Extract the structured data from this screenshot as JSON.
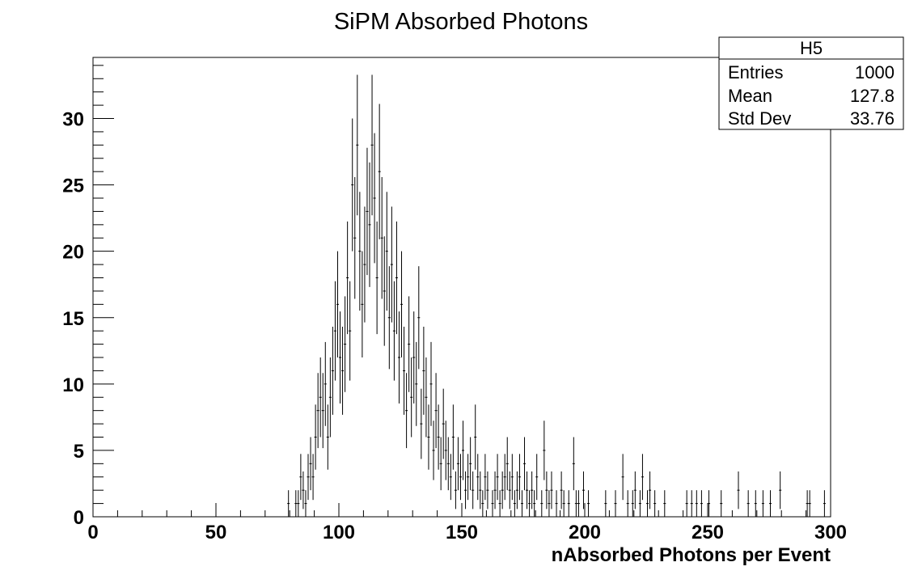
{
  "chart_data": {
    "type": "histogram",
    "title": "SiPM Absorbed Photons",
    "xlabel": "nAbsorbed Photons per Event",
    "ylabel": "",
    "xlim": [
      0,
      300
    ],
    "ylim": [
      0,
      34.6
    ],
    "bin_width": 1,
    "x_ticks": [
      "0",
      "50",
      "100",
      "150",
      "200",
      "250",
      "300"
    ],
    "y_ticks": [
      "0",
      "5",
      "10",
      "15",
      "20",
      "25",
      "30"
    ],
    "grid": false,
    "legend": "none",
    "stats_box": {
      "name": "H5",
      "rows": [
        {
          "label": "Entries",
          "value": "1000"
        },
        {
          "label": "Mean",
          "value": "127.8"
        },
        {
          "label": "Std Dev",
          "value": "33.76"
        }
      ]
    },
    "bins": [
      {
        "x": 79,
        "y": 1
      },
      {
        "x": 82,
        "y": 1
      },
      {
        "x": 83,
        "y": 1
      },
      {
        "x": 84,
        "y": 3
      },
      {
        "x": 85,
        "y": 2
      },
      {
        "x": 86,
        "y": 1
      },
      {
        "x": 87,
        "y": 3
      },
      {
        "x": 88,
        "y": 4
      },
      {
        "x": 89,
        "y": 3
      },
      {
        "x": 90,
        "y": 6
      },
      {
        "x": 91,
        "y": 8
      },
      {
        "x": 92,
        "y": 9
      },
      {
        "x": 93,
        "y": 8
      },
      {
        "x": 94,
        "y": 10
      },
      {
        "x": 95,
        "y": 6
      },
      {
        "x": 96,
        "y": 9
      },
      {
        "x": 97,
        "y": 11
      },
      {
        "x": 98,
        "y": 14
      },
      {
        "x": 99,
        "y": 16
      },
      {
        "x": 100,
        "y": 12
      },
      {
        "x": 101,
        "y": 11
      },
      {
        "x": 102,
        "y": 13
      },
      {
        "x": 103,
        "y": 18
      },
      {
        "x": 104,
        "y": 14
      },
      {
        "x": 105,
        "y": 25
      },
      {
        "x": 106,
        "y": 21
      },
      {
        "x": 107,
        "y": 28
      },
      {
        "x": 108,
        "y": 20
      },
      {
        "x": 109,
        "y": 16
      },
      {
        "x": 110,
        "y": 19
      },
      {
        "x": 111,
        "y": 23
      },
      {
        "x": 112,
        "y": 22
      },
      {
        "x": 113,
        "y": 28
      },
      {
        "x": 114,
        "y": 24
      },
      {
        "x": 115,
        "y": 18
      },
      {
        "x": 116,
        "y": 26
      },
      {
        "x": 117,
        "y": 21
      },
      {
        "x": 118,
        "y": 17
      },
      {
        "x": 119,
        "y": 20
      },
      {
        "x": 120,
        "y": 15
      },
      {
        "x": 121,
        "y": 19
      },
      {
        "x": 122,
        "y": 14
      },
      {
        "x": 123,
        "y": 18
      },
      {
        "x": 124,
        "y": 12
      },
      {
        "x": 125,
        "y": 16
      },
      {
        "x": 126,
        "y": 11
      },
      {
        "x": 127,
        "y": 8
      },
      {
        "x": 128,
        "y": 13
      },
      {
        "x": 129,
        "y": 9
      },
      {
        "x": 130,
        "y": 12
      },
      {
        "x": 131,
        "y": 10
      },
      {
        "x": 132,
        "y": 15
      },
      {
        "x": 133,
        "y": 7
      },
      {
        "x": 134,
        "y": 11
      },
      {
        "x": 135,
        "y": 9
      },
      {
        "x": 136,
        "y": 6
      },
      {
        "x": 137,
        "y": 10
      },
      {
        "x": 138,
        "y": 5
      },
      {
        "x": 139,
        "y": 8
      },
      {
        "x": 140,
        "y": 6
      },
      {
        "x": 141,
        "y": 4
      },
      {
        "x": 142,
        "y": 7
      },
      {
        "x": 143,
        "y": 5
      },
      {
        "x": 144,
        "y": 4
      },
      {
        "x": 145,
        "y": 3
      },
      {
        "x": 146,
        "y": 6
      },
      {
        "x": 147,
        "y": 2
      },
      {
        "x": 148,
        "y": 4
      },
      {
        "x": 149,
        "y": 3
      },
      {
        "x": 150,
        "y": 5
      },
      {
        "x": 151,
        "y": 2
      },
      {
        "x": 152,
        "y": 3
      },
      {
        "x": 153,
        "y": 4
      },
      {
        "x": 154,
        "y": 2
      },
      {
        "x": 155,
        "y": 6
      },
      {
        "x": 156,
        "y": 3
      },
      {
        "x": 157,
        "y": 2
      },
      {
        "x": 158,
        "y": 1
      },
      {
        "x": 159,
        "y": 3
      },
      {
        "x": 160,
        "y": 2
      },
      {
        "x": 162,
        "y": 1
      },
      {
        "x": 163,
        "y": 2
      },
      {
        "x": 164,
        "y": 3
      },
      {
        "x": 165,
        "y": 1
      },
      {
        "x": 166,
        "y": 2
      },
      {
        "x": 167,
        "y": 3
      },
      {
        "x": 168,
        "y": 4
      },
      {
        "x": 169,
        "y": 2
      },
      {
        "x": 170,
        "y": 3
      },
      {
        "x": 171,
        "y": 1
      },
      {
        "x": 172,
        "y": 2
      },
      {
        "x": 173,
        "y": 3
      },
      {
        "x": 174,
        "y": 1
      },
      {
        "x": 175,
        "y": 4
      },
      {
        "x": 176,
        "y": 2
      },
      {
        "x": 177,
        "y": 1
      },
      {
        "x": 178,
        "y": 2
      },
      {
        "x": 179,
        "y": 1
      },
      {
        "x": 180,
        "y": 3
      },
      {
        "x": 182,
        "y": 1
      },
      {
        "x": 183,
        "y": 5
      },
      {
        "x": 184,
        "y": 2
      },
      {
        "x": 185,
        "y": 1
      },
      {
        "x": 186,
        "y": 2
      },
      {
        "x": 188,
        "y": 1
      },
      {
        "x": 190,
        "y": 2
      },
      {
        "x": 191,
        "y": 1
      },
      {
        "x": 193,
        "y": 1
      },
      {
        "x": 195,
        "y": 4
      },
      {
        "x": 196,
        "y": 1
      },
      {
        "x": 197,
        "y": 1
      },
      {
        "x": 199,
        "y": 2
      },
      {
        "x": 201,
        "y": 1
      },
      {
        "x": 208,
        "y": 1
      },
      {
        "x": 212,
        "y": 1
      },
      {
        "x": 215,
        "y": 3
      },
      {
        "x": 217,
        "y": 1
      },
      {
        "x": 219,
        "y": 1
      },
      {
        "x": 220,
        "y": 2
      },
      {
        "x": 222,
        "y": 1
      },
      {
        "x": 223,
        "y": 3
      },
      {
        "x": 225,
        "y": 1
      },
      {
        "x": 226,
        "y": 2
      },
      {
        "x": 228,
        "y": 1
      },
      {
        "x": 232,
        "y": 1
      },
      {
        "x": 241,
        "y": 1
      },
      {
        "x": 243,
        "y": 1
      },
      {
        "x": 245,
        "y": 1
      },
      {
        "x": 247,
        "y": 1
      },
      {
        "x": 250,
        "y": 1
      },
      {
        "x": 255,
        "y": 1
      },
      {
        "x": 262,
        "y": 2
      },
      {
        "x": 266,
        "y": 1
      },
      {
        "x": 269,
        "y": 1
      },
      {
        "x": 272,
        "y": 1
      },
      {
        "x": 275,
        "y": 1
      },
      {
        "x": 279,
        "y": 2
      },
      {
        "x": 290,
        "y": 1
      },
      {
        "x": 291,
        "y": 1
      },
      {
        "x": 297,
        "y": 1
      }
    ]
  }
}
